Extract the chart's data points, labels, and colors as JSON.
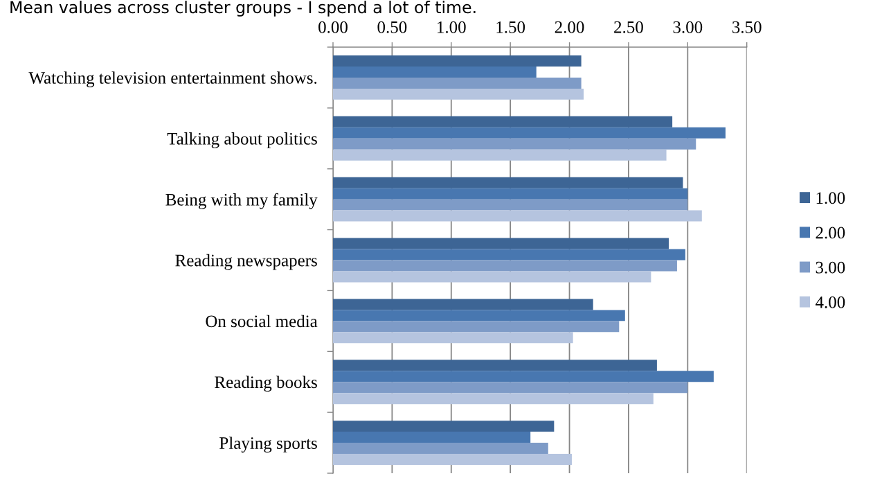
{
  "chart_data": {
    "type": "bar",
    "orientation": "horizontal",
    "title": "Mean values across cluster groups - I spend a lot of time.",
    "categories": [
      "Watching television entertainment shows.",
      "Talking about politics",
      "Being with my family",
      "Reading newspapers",
      "On social media",
      "Reading books",
      "Playing sports"
    ],
    "series": [
      {
        "name": "1.00",
        "color": "#3d6595",
        "values": [
          2.1,
          2.87,
          2.96,
          2.84,
          2.2,
          2.74,
          1.87
        ]
      },
      {
        "name": "2.00",
        "color": "#4877b0",
        "values": [
          1.72,
          3.32,
          3.0,
          2.98,
          2.47,
          3.22,
          1.67
        ]
      },
      {
        "name": "3.00",
        "color": "#7e9bc7",
        "values": [
          2.1,
          3.07,
          3.0,
          2.91,
          2.42,
          3.0,
          1.82
        ]
      },
      {
        "name": "4.00",
        "color": "#b5c4df",
        "values": [
          2.12,
          2.82,
          3.12,
          2.69,
          2.03,
          2.71,
          2.02
        ]
      }
    ],
    "xlim": [
      0,
      3.5
    ],
    "xticks": [
      {
        "value": 0,
        "label": "0.00"
      },
      {
        "value": 0.5,
        "label": "0.50"
      },
      {
        "value": 1,
        "label": "1.00"
      },
      {
        "value": 1.5,
        "label": "1.50"
      },
      {
        "value": 2,
        "label": "2.00"
      },
      {
        "value": 2.5,
        "label": "2.50"
      },
      {
        "value": 3,
        "label": "3.00"
      },
      {
        "value": 3.5,
        "label": "3.50"
      }
    ],
    "grid": "x",
    "legend": "right"
  }
}
